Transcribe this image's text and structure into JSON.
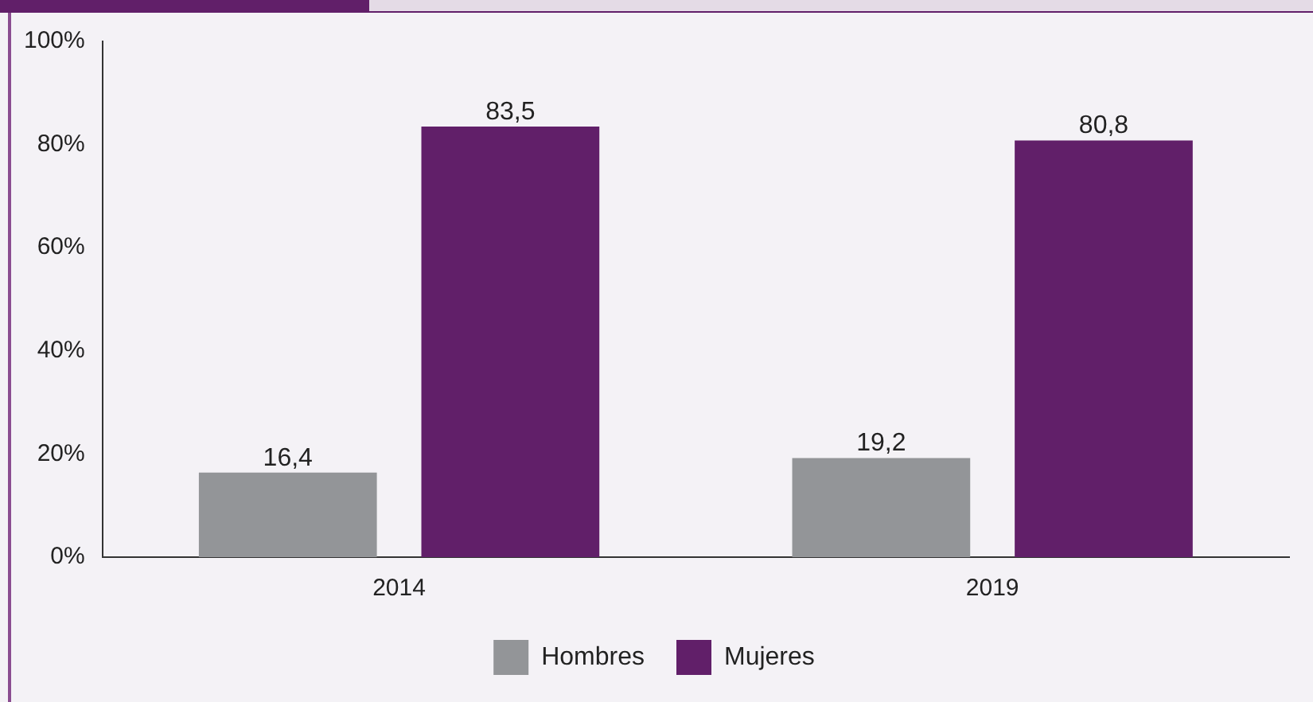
{
  "chart_data": {
    "type": "bar",
    "categories": [
      "2014",
      "2019"
    ],
    "series": [
      {
        "name": "Hombres",
        "color": "#939598",
        "values": [
          16.4,
          19.2
        ],
        "value_labels": [
          "16,4",
          "19,2"
        ]
      },
      {
        "name": "Mujeres",
        "color": "#611f69",
        "values": [
          83.5,
          80.8
        ],
        "value_labels": [
          "83,5",
          "80,8"
        ]
      }
    ],
    "ylim": [
      0,
      100
    ],
    "yticks": [
      {
        "value": 0,
        "label": "0%"
      },
      {
        "value": 20,
        "label": "20%"
      },
      {
        "value": 40,
        "label": "40%"
      },
      {
        "value": 60,
        "label": "60%"
      },
      {
        "value": 80,
        "label": "80%"
      },
      {
        "value": 100,
        "label": "100%"
      }
    ],
    "grid": false,
    "legend": "bottom"
  }
}
